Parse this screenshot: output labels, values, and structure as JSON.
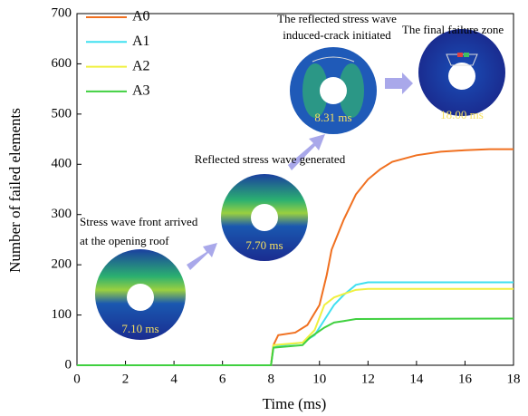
{
  "chart_data": {
    "type": "line",
    "x_label": "Time (ms)",
    "y_label": "Number of failed elements",
    "xlim": [
      0,
      18
    ],
    "xticks": [
      0,
      2,
      4,
      6,
      8,
      10,
      12,
      14,
      16,
      18
    ],
    "ylim": [
      0,
      700
    ],
    "yticks": [
      0,
      100,
      200,
      300,
      400,
      500,
      600,
      700
    ],
    "legend": "upper left",
    "series": [
      {
        "name": "A0",
        "color": "#f07020",
        "x": [
          0,
          8,
          8.1,
          8.3,
          9,
          9.5,
          10,
          10.3,
          10.5,
          11,
          11.5,
          12,
          12.5,
          13,
          14,
          15,
          16,
          17,
          18
        ],
        "values": [
          0,
          0,
          40,
          60,
          65,
          80,
          120,
          180,
          230,
          290,
          340,
          370,
          390,
          405,
          418,
          425,
          428,
          430,
          430
        ]
      },
      {
        "name": "A1",
        "color": "#40e0f0",
        "x": [
          0,
          8,
          8.1,
          8.5,
          9.3,
          9.8,
          10.2,
          10.6,
          11,
          11.5,
          12,
          18
        ],
        "values": [
          0,
          0,
          35,
          40,
          45,
          60,
          90,
          120,
          140,
          160,
          165,
          165
        ]
      },
      {
        "name": "A2",
        "color": "#f0f040",
        "x": [
          0,
          8,
          8.1,
          9.3,
          9.8,
          10.2,
          10.6,
          11,
          11.5,
          12,
          18
        ],
        "values": [
          0,
          0,
          40,
          45,
          70,
          120,
          135,
          142,
          150,
          152,
          152
        ]
      },
      {
        "name": "A3",
        "color": "#40d040",
        "x": [
          0,
          8,
          8.1,
          9.3,
          9.6,
          10.2,
          10.6,
          11,
          11.5,
          18
        ],
        "values": [
          0,
          0,
          35,
          40,
          55,
          75,
          85,
          88,
          92,
          93
        ]
      }
    ],
    "annotations": [
      {
        "lines": [
          "Stress wave front arrived",
          "at the opening roof"
        ],
        "time": "7.10 ms"
      },
      {
        "lines": [
          "Reflected stress wave generated"
        ],
        "time": "7.70 ms"
      },
      {
        "lines": [
          "The reflected stress wave",
          "induced-crack initiated"
        ],
        "time": "8.31 ms"
      },
      {
        "lines": [
          "The final failure zone"
        ],
        "time": "18.00 ms"
      }
    ]
  }
}
